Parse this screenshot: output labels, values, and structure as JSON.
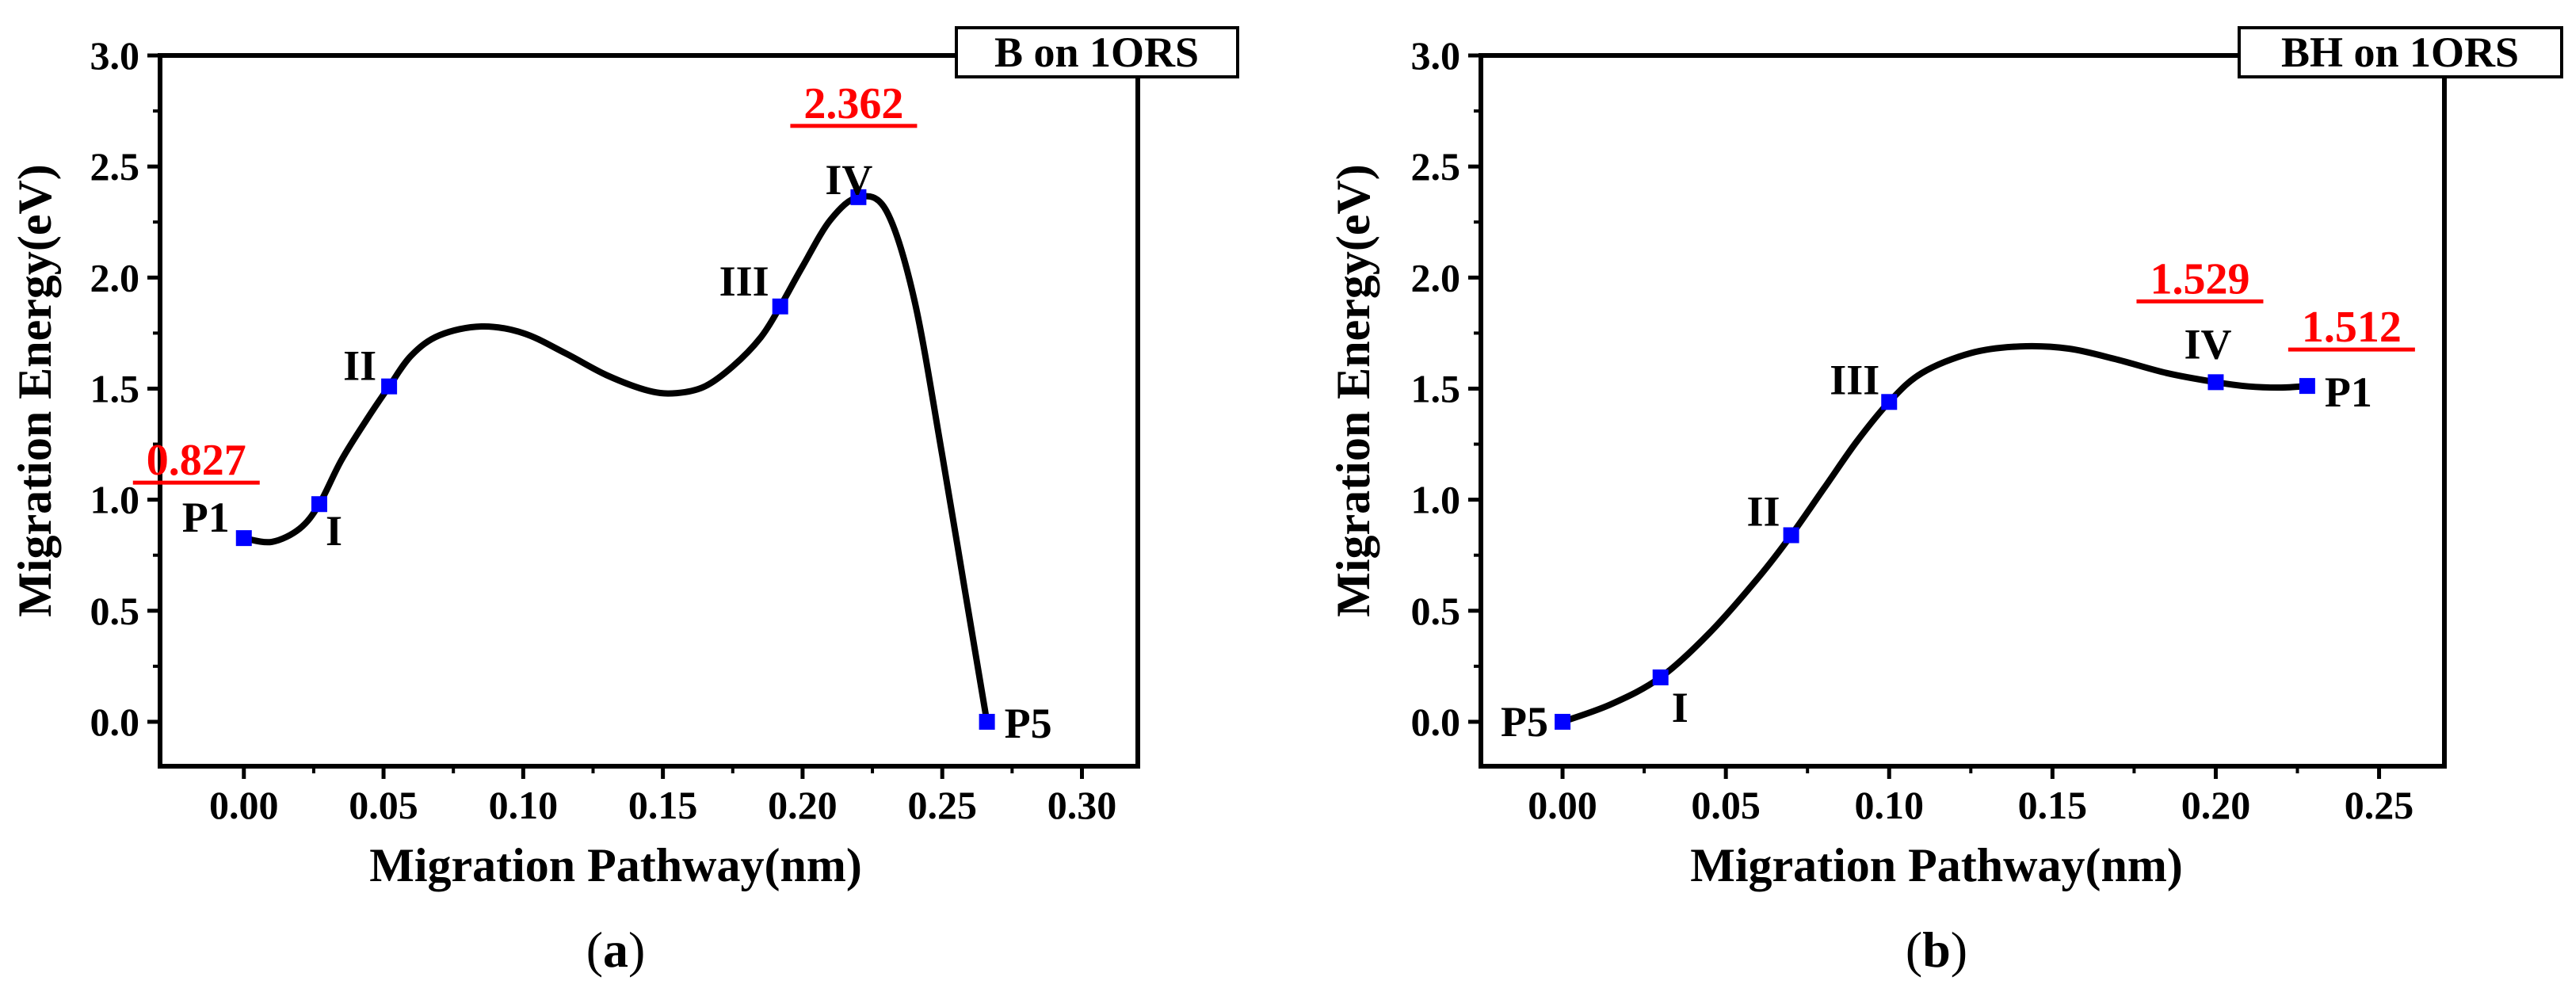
{
  "colors": {
    "curve": "#000000",
    "marker": "#0000ff",
    "barrier": "#ff0000",
    "axis": "#000000"
  },
  "chart_data": [
    {
      "type": "line",
      "title": "B on 1ORS",
      "panel": "a",
      "xlabel": "Migration Pathway(nm)",
      "ylabel": "Migration Energy(eV)",
      "xlim": [
        -0.03,
        0.32
      ],
      "ylim": [
        -0.2,
        3.0
      ],
      "xticks": [
        "0.00",
        "0.05",
        "0.10",
        "0.15",
        "0.20",
        "0.25",
        "0.30"
      ],
      "yticks": [
        "0.0",
        "0.5",
        "1.0",
        "1.5",
        "2.0",
        "2.5",
        "3.0"
      ],
      "points": [
        {
          "label": "P1",
          "x": 0.0,
          "y": 0.827,
          "side": "left"
        },
        {
          "label": "I",
          "x": 0.027,
          "y": 0.98,
          "side": "below-right"
        },
        {
          "label": "II",
          "x": 0.052,
          "y": 1.51,
          "side": "left"
        },
        {
          "label": "III",
          "x": 0.192,
          "y": 1.87,
          "side": "left"
        },
        {
          "label": "IV",
          "x": 0.22,
          "y": 2.362,
          "side": "above"
        },
        {
          "label": "P5",
          "x": 0.266,
          "y": 0.0,
          "side": "right"
        }
      ],
      "curve": [
        [
          0.0,
          0.827
        ],
        [
          0.01,
          0.81
        ],
        [
          0.02,
          0.87
        ],
        [
          0.027,
          0.98
        ],
        [
          0.035,
          1.18
        ],
        [
          0.045,
          1.38
        ],
        [
          0.052,
          1.51
        ],
        [
          0.06,
          1.65
        ],
        [
          0.07,
          1.74
        ],
        [
          0.085,
          1.78
        ],
        [
          0.1,
          1.75
        ],
        [
          0.115,
          1.66
        ],
        [
          0.13,
          1.56
        ],
        [
          0.145,
          1.49
        ],
        [
          0.155,
          1.48
        ],
        [
          0.165,
          1.51
        ],
        [
          0.175,
          1.6
        ],
        [
          0.185,
          1.73
        ],
        [
          0.192,
          1.87
        ],
        [
          0.2,
          2.05
        ],
        [
          0.21,
          2.26
        ],
        [
          0.22,
          2.362
        ],
        [
          0.23,
          2.3
        ],
        [
          0.24,
          1.9
        ],
        [
          0.25,
          1.2
        ],
        [
          0.258,
          0.6
        ],
        [
          0.266,
          0.0
        ]
      ],
      "barriers": [
        {
          "value": "0.827",
          "at": "P1"
        },
        {
          "value": "2.362",
          "at": "IV"
        }
      ]
    },
    {
      "type": "line",
      "title": "BH on 1ORS",
      "panel": "b",
      "xlabel": "Migration Pathway(nm)",
      "ylabel": "Migration Energy(eV)",
      "xlim": [
        -0.025,
        0.27
      ],
      "ylim": [
        -0.2,
        3.0
      ],
      "xticks": [
        "0.00",
        "0.05",
        "0.10",
        "0.15",
        "0.20",
        "0.25"
      ],
      "yticks": [
        "0.0",
        "0.5",
        "1.0",
        "1.5",
        "2.0",
        "2.5",
        "3.0"
      ],
      "points": [
        {
          "label": "P5",
          "x": 0.0,
          "y": 0.0,
          "side": "left"
        },
        {
          "label": "I",
          "x": 0.03,
          "y": 0.2,
          "side": "below-right"
        },
        {
          "label": "II",
          "x": 0.07,
          "y": 0.84,
          "side": "left"
        },
        {
          "label": "III",
          "x": 0.1,
          "y": 1.44,
          "side": "left"
        },
        {
          "label": "IV",
          "x": 0.2,
          "y": 1.529,
          "side": "above"
        },
        {
          "label": "P1",
          "x": 0.228,
          "y": 1.512,
          "side": "right"
        }
      ],
      "curve": [
        [
          0.0,
          0.0
        ],
        [
          0.015,
          0.08
        ],
        [
          0.03,
          0.2
        ],
        [
          0.045,
          0.4
        ],
        [
          0.06,
          0.65
        ],
        [
          0.07,
          0.84
        ],
        [
          0.08,
          1.05
        ],
        [
          0.09,
          1.26
        ],
        [
          0.1,
          1.44
        ],
        [
          0.11,
          1.57
        ],
        [
          0.125,
          1.66
        ],
        [
          0.14,
          1.69
        ],
        [
          0.155,
          1.68
        ],
        [
          0.17,
          1.63
        ],
        [
          0.185,
          1.57
        ],
        [
          0.2,
          1.529
        ],
        [
          0.21,
          1.51
        ],
        [
          0.22,
          1.505
        ],
        [
          0.228,
          1.512
        ]
      ],
      "barriers": [
        {
          "value": "1.529",
          "at": "IV"
        },
        {
          "value": "1.512",
          "at": "P1"
        }
      ]
    }
  ]
}
